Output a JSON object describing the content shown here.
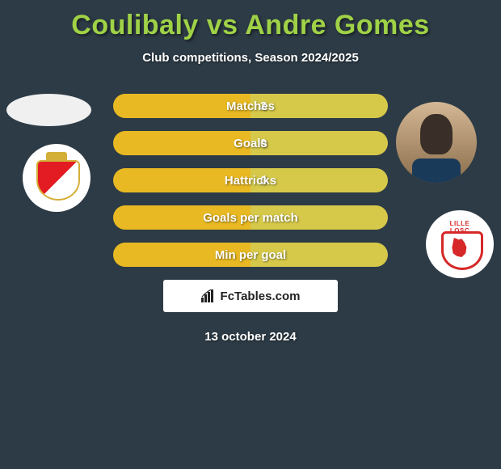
{
  "title_color": "#9fd246",
  "title": "Coulibaly vs Andre Gomes",
  "subtitle": "Club competitions, Season 2024/2025",
  "background_color": "#2d3b46",
  "bar_area": {
    "total_width": 340,
    "height": 30,
    "gap": 16
  },
  "colors": {
    "monaco": "#e8b923",
    "lille": "#d6c94a"
  },
  "stats": [
    {
      "label": "Matches",
      "left_val": "",
      "right_val": "3",
      "left_w": 170,
      "right_w": 170
    },
    {
      "label": "Goals",
      "left_val": "",
      "right_val": "0",
      "left_w": 170,
      "right_w": 170
    },
    {
      "label": "Hattricks",
      "left_val": "",
      "right_val": "0",
      "left_w": 170,
      "right_w": 170
    },
    {
      "label": "Goals per match",
      "left_val": "",
      "right_val": "",
      "left_w": 170,
      "right_w": 170
    },
    {
      "label": "Min per goal",
      "left_val": "",
      "right_val": "",
      "left_w": 170,
      "right_w": 170
    }
  ],
  "footer_brand": "FcTables.com",
  "date": "13 october 2024",
  "players": {
    "left": {
      "name": "Coulibaly",
      "club": "AS Monaco"
    },
    "right": {
      "name": "Andre Gomes",
      "club": "LOSC Lille"
    }
  }
}
